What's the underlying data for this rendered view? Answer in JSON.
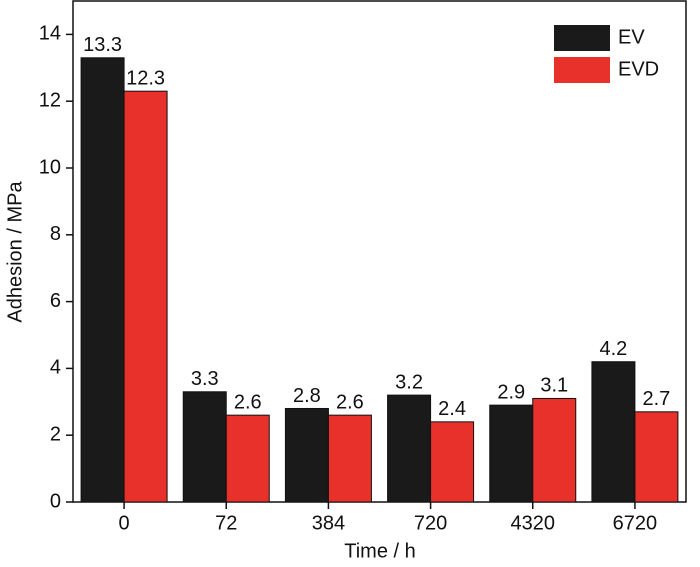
{
  "chart_data": {
    "type": "bar",
    "x_label": "Time / h",
    "y_label": "Adhesion / MPa",
    "categories": [
      "0",
      "72",
      "384",
      "720",
      "4320",
      "6720"
    ],
    "series": [
      {
        "name": "EV",
        "color": "#1a1a1a",
        "values": [
          13.3,
          3.3,
          2.8,
          3.2,
          2.9,
          4.2
        ]
      },
      {
        "name": "EVD",
        "color": "#e8312a",
        "values": [
          12.3,
          2.6,
          2.6,
          2.4,
          3.1,
          2.7
        ]
      }
    ],
    "ylim": [
      0,
      15
    ],
    "yticks": [
      0,
      2,
      4,
      6,
      8,
      10,
      12,
      14
    ],
    "legend": "upper right",
    "data_labels": true
  }
}
